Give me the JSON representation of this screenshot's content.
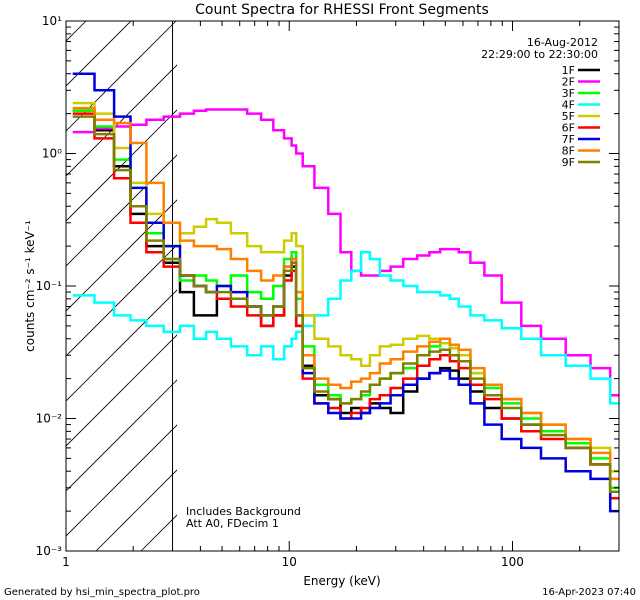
{
  "chart_data": {
    "type": "line",
    "title": "Count Spectra for RHESSI Front Segments",
    "xlabel": "Energy (keV)",
    "ylabel": "counts cm⁻² s⁻¹ keV⁻¹",
    "xscale": "log",
    "yscale": "log",
    "xlim": [
      1,
      300
    ],
    "ylim": [
      0.001,
      10
    ],
    "x_tick_labels": [
      "1",
      "10",
      "100"
    ],
    "y_tick_labels": [
      "10⁻³",
      "10⁻²",
      "10⁻¹",
      "10⁰",
      "10¹"
    ],
    "date": "16-Aug-2012",
    "time_range": "22:29:00 to 22:30:00",
    "excluded_region_upper_keV": 3,
    "annotations": [
      "Includes Background",
      "Att A0, FDecim 1"
    ],
    "legend_position": "top-right",
    "x": [
      1.2,
      1.5,
      1.8,
      2.1,
      2.5,
      3.0,
      3.5,
      4.0,
      4.5,
      5.0,
      6.0,
      7.0,
      8.0,
      9.0,
      10.0,
      10.5,
      11.0,
      12.0,
      14.0,
      16.0,
      18.0,
      20.0,
      22.0,
      24.0,
      27.0,
      30.0,
      35.0,
      40.0,
      45.0,
      50.0,
      55.0,
      60.0,
      70.0,
      80.0,
      100.0,
      120.0,
      150.0,
      200.0,
      250.0,
      300.0
    ],
    "series": [
      {
        "name": "1F",
        "color": "#000000",
        "values": [
          2.1,
          1.5,
          0.8,
          0.35,
          0.2,
          0.15,
          0.09,
          0.06,
          0.06,
          0.08,
          0.08,
          0.07,
          0.05,
          0.06,
          0.12,
          0.14,
          0.05,
          0.025,
          0.015,
          0.014,
          0.011,
          0.012,
          0.011,
          0.013,
          0.012,
          0.011,
          0.016,
          0.02,
          0.022,
          0.024,
          0.023,
          0.02,
          0.016,
          0.012,
          0.01,
          0.009,
          0.008,
          0.006,
          0.0045,
          0.003
        ]
      },
      {
        "name": "2F",
        "color": "#ff00ff",
        "values": [
          1.45,
          1.55,
          1.6,
          1.65,
          1.8,
          1.9,
          2.0,
          2.1,
          2.15,
          2.15,
          2.15,
          2.0,
          1.8,
          1.5,
          1.3,
          1.15,
          1.0,
          0.8,
          0.55,
          0.35,
          0.18,
          0.13,
          0.12,
          0.12,
          0.13,
          0.14,
          0.16,
          0.17,
          0.18,
          0.19,
          0.19,
          0.18,
          0.15,
          0.12,
          0.075,
          0.05,
          0.04,
          0.03,
          0.024,
          0.015
        ]
      },
      {
        "name": "3F",
        "color": "#00ff00",
        "values": [
          2.1,
          1.6,
          0.9,
          0.4,
          0.25,
          0.16,
          0.11,
          0.12,
          0.11,
          0.1,
          0.12,
          0.09,
          0.08,
          0.1,
          0.16,
          0.18,
          0.08,
          0.035,
          0.018,
          0.015,
          0.013,
          0.014,
          0.015,
          0.018,
          0.02,
          0.022,
          0.024,
          0.03,
          0.035,
          0.037,
          0.034,
          0.03,
          0.022,
          0.017,
          0.013,
          0.01,
          0.008,
          0.0065,
          0.005,
          0.003
        ]
      },
      {
        "name": "4F",
        "color": "#00ffff",
        "values": [
          0.085,
          0.075,
          0.06,
          0.055,
          0.05,
          0.045,
          0.05,
          0.04,
          0.045,
          0.04,
          0.035,
          0.03,
          0.035,
          0.028,
          0.035,
          0.04,
          0.045,
          0.05,
          0.06,
          0.08,
          0.11,
          0.13,
          0.18,
          0.16,
          0.12,
          0.11,
          0.1,
          0.09,
          0.09,
          0.085,
          0.08,
          0.07,
          0.06,
          0.055,
          0.048,
          0.04,
          0.03,
          0.025,
          0.02,
          0.013
        ]
      },
      {
        "name": "5F",
        "color": "#cccc00",
        "values": [
          2.4,
          2.0,
          1.1,
          0.6,
          0.35,
          0.2,
          0.25,
          0.28,
          0.32,
          0.3,
          0.25,
          0.2,
          0.18,
          0.18,
          0.22,
          0.25,
          0.2,
          0.06,
          0.04,
          0.035,
          0.03,
          0.028,
          0.025,
          0.03,
          0.035,
          0.036,
          0.04,
          0.042,
          0.04,
          0.037,
          0.034,
          0.03,
          0.022,
          0.018,
          0.014,
          0.011,
          0.009,
          0.007,
          0.006,
          0.004
        ]
      },
      {
        "name": "6F",
        "color": "#ff0000",
        "values": [
          2.0,
          1.3,
          0.65,
          0.3,
          0.18,
          0.14,
          0.12,
          0.1,
          0.09,
          0.08,
          0.07,
          0.06,
          0.05,
          0.06,
          0.11,
          0.13,
          0.05,
          0.02,
          0.013,
          0.012,
          0.01,
          0.011,
          0.012,
          0.014,
          0.015,
          0.017,
          0.02,
          0.025,
          0.028,
          0.03,
          0.027,
          0.024,
          0.018,
          0.014,
          0.01,
          0.008,
          0.007,
          0.006,
          0.0045,
          0.0025
        ]
      },
      {
        "name": "7F",
        "color": "#0000dd",
        "values": [
          4.0,
          3.0,
          1.9,
          0.55,
          0.3,
          0.2,
          0.12,
          0.1,
          0.09,
          0.1,
          0.09,
          0.07,
          0.06,
          0.07,
          0.14,
          0.16,
          0.06,
          0.022,
          0.013,
          0.011,
          0.01,
          0.01,
          0.011,
          0.012,
          0.013,
          0.015,
          0.018,
          0.02,
          0.022,
          0.023,
          0.02,
          0.018,
          0.013,
          0.009,
          0.007,
          0.006,
          0.005,
          0.004,
          0.0035,
          0.002
        ]
      },
      {
        "name": "8F",
        "color": "#ff8000",
        "values": [
          2.2,
          1.8,
          1.7,
          1.2,
          0.6,
          0.3,
          0.22,
          0.2,
          0.2,
          0.19,
          0.16,
          0.13,
          0.11,
          0.12,
          0.14,
          0.16,
          0.09,
          0.03,
          0.02,
          0.018,
          0.017,
          0.019,
          0.02,
          0.022,
          0.026,
          0.028,
          0.032,
          0.035,
          0.038,
          0.04,
          0.036,
          0.033,
          0.024,
          0.018,
          0.014,
          0.011,
          0.009,
          0.007,
          0.0055,
          0.0035
        ]
      },
      {
        "name": "9F",
        "color": "#808000",
        "values": [
          1.9,
          1.4,
          0.75,
          0.4,
          0.22,
          0.16,
          0.12,
          0.1,
          0.09,
          0.09,
          0.08,
          0.07,
          0.06,
          0.07,
          0.13,
          0.15,
          0.06,
          0.024,
          0.016,
          0.014,
          0.013,
          0.014,
          0.016,
          0.018,
          0.02,
          0.022,
          0.026,
          0.03,
          0.032,
          0.033,
          0.03,
          0.027,
          0.02,
          0.015,
          0.012,
          0.009,
          0.0075,
          0.006,
          0.0045,
          0.0028
        ]
      }
    ]
  },
  "footer": {
    "generated_by": "Generated by hsi_min_spectra_plot.pro",
    "timestamp": "16-Apr-2023 07:40"
  }
}
